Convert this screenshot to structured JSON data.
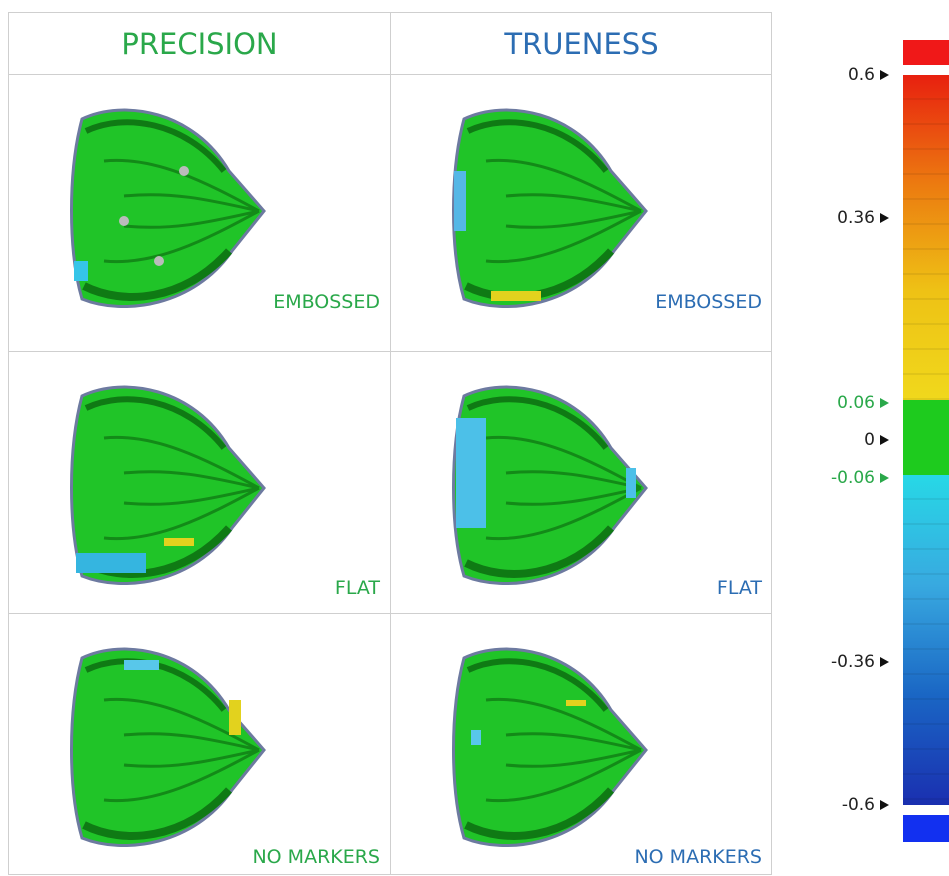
{
  "headers": [
    "PRECISION",
    "TRUENESS"
  ],
  "rows": [
    [
      "EMBOSSED",
      "EMBOSSED"
    ],
    [
      "FLAT",
      "FLAT"
    ],
    [
      "NO MARKERS",
      "NO MARKERS"
    ]
  ],
  "scale": {
    "ticks": [
      0.6,
      0.36,
      0.06,
      0,
      -0.06,
      -0.36,
      -0.6
    ]
  }
}
